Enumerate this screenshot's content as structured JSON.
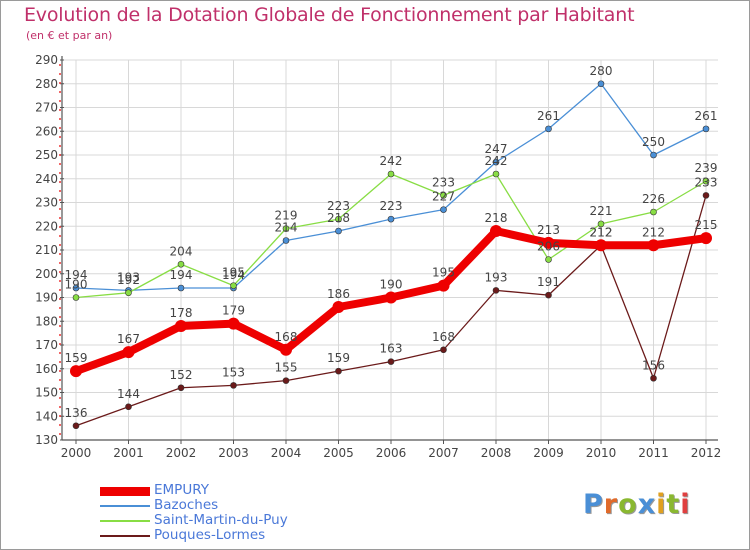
{
  "colors": {
    "title": "#c0306a",
    "legend_text": "#4a78d8",
    "axis": "#555555",
    "grid": "#d8d8d8",
    "label": "#444444"
  },
  "logo": {
    "text": "Proxiti",
    "letter_colors": [
      "#4a8fd6",
      "#e06a2a",
      "#8ab830",
      "#4a8fd6",
      "#e0a020",
      "#8ab830",
      "#e04040"
    ]
  },
  "chart_data": {
    "type": "line",
    "title": "Evolution de la Dotation Globale de Fonctionnement par Habitant",
    "subtitle": "(en € et par an)",
    "xlabel": "",
    "ylabel": "",
    "x": [
      "2000",
      "2001",
      "2002",
      "2003",
      "2004",
      "2005",
      "2006",
      "2007",
      "2008",
      "2009",
      "2010",
      "2011",
      "2012"
    ],
    "ylim": [
      130,
      290
    ],
    "yticks": [
      130,
      140,
      150,
      160,
      170,
      180,
      190,
      200,
      210,
      220,
      230,
      240,
      250,
      260,
      270,
      280,
      290
    ],
    "grid": true,
    "legend_position": "bottom-left",
    "series": [
      {
        "name": "EMPURY",
        "color": "#ee0000",
        "width": 8,
        "marker_radius": 6,
        "values": [
          159,
          167,
          178,
          179,
          168,
          186,
          190,
          195,
          218,
          213,
          212,
          212,
          215
        ]
      },
      {
        "name": "Bazoches",
        "color": "#4a8fd6",
        "width": 1.3,
        "marker_radius": 3,
        "values": [
          194,
          193,
          194,
          194,
          214,
          218,
          223,
          227,
          247,
          261,
          280,
          250,
          261
        ]
      },
      {
        "name": "Saint-Martin-du-Puy",
        "color": "#88dd44",
        "width": 1.3,
        "marker_radius": 3,
        "values": [
          190,
          192,
          204,
          195,
          219,
          223,
          242,
          233,
          242,
          206,
          221,
          226,
          239
        ]
      },
      {
        "name": "Pouques-Lormes",
        "color": "#6b1a1a",
        "width": 1.3,
        "marker_radius": 3,
        "values": [
          136,
          144,
          152,
          153,
          155,
          159,
          163,
          168,
          193,
          191,
          212,
          156,
          233
        ]
      }
    ]
  }
}
